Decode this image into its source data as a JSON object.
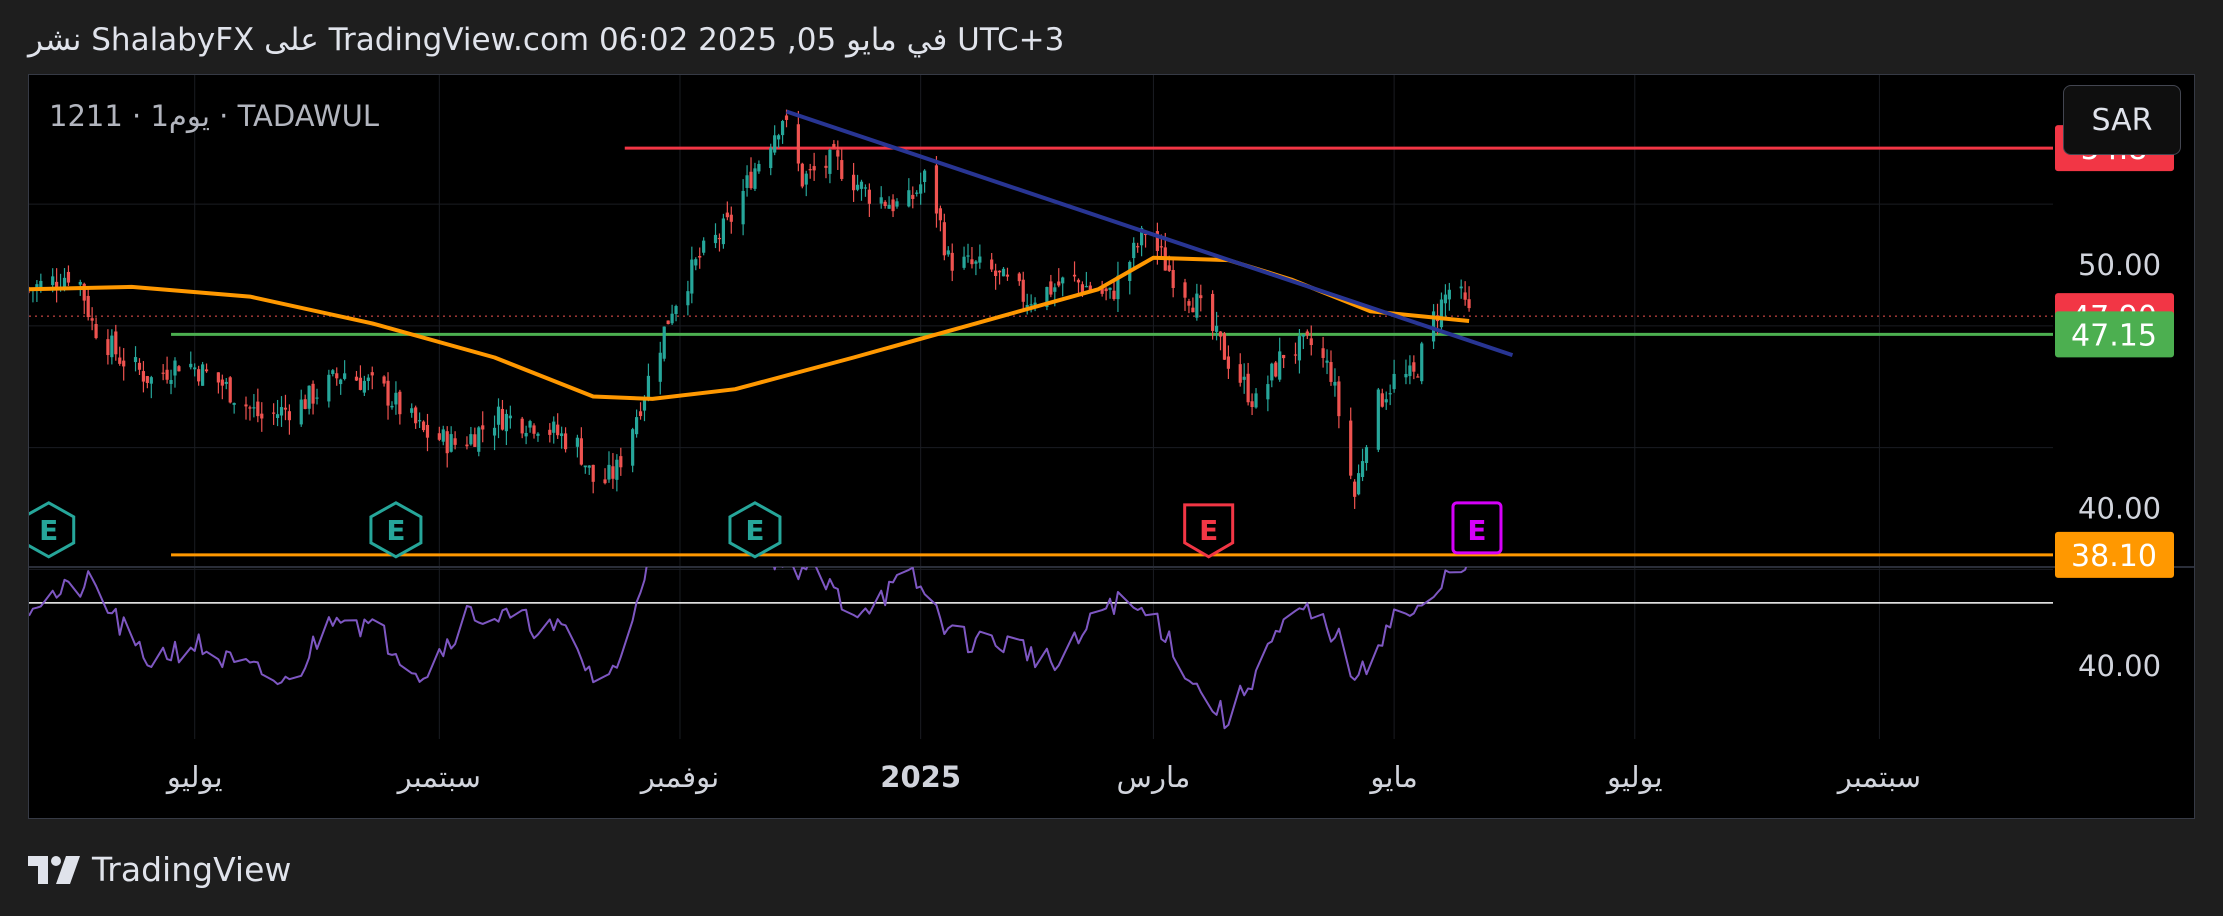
{
  "header": {
    "text": "نشر ShalabyFX على TradingView.com 06:02 2025 ,05 في مايو UTC+3"
  },
  "chart_header": {
    "symbol_info": "1211 · 1يوم · TADAWUL",
    "currency": "SAR"
  },
  "footer": {
    "brand": "TradingView"
  },
  "colors": {
    "up": "#26a69a",
    "down": "#ef5350",
    "ma": "#ff9800",
    "trendline": "#283593",
    "resistance": "#f23645",
    "support_green": "#4caf50",
    "support_orange": "#ff9800",
    "rsi": "#7e57c2",
    "earnings_green": "#26a69a",
    "earnings_red": "#f23645",
    "earnings_purple": "#d500f9"
  },
  "chart_data": {
    "type": "candlestick",
    "exchange": "TADAWUL",
    "symbol": "1211",
    "interval": "1يوم",
    "currency": "SAR",
    "price_axis": {
      "range": [
        37.6,
        57.8
      ],
      "tick_labels": [
        "50.00",
        "40.00"
      ]
    },
    "x_axis": {
      "range": [
        "2024-05-20",
        "2025-10-15"
      ],
      "ticks": [
        {
          "date": "2024-07-01",
          "label": "يوليو",
          "bold": false
        },
        {
          "date": "2024-09-01",
          "label": "سبتمبر",
          "bold": false
        },
        {
          "date": "2024-11-01",
          "label": "نوفمبر",
          "bold": false
        },
        {
          "date": "2025-01-01",
          "label": "2025",
          "bold": true
        },
        {
          "date": "2025-03-01",
          "label": "مارس",
          "bold": false
        },
        {
          "date": "2025-05-01",
          "label": "مايو",
          "bold": false
        },
        {
          "date": "2025-07-01",
          "label": "يوليو",
          "bold": false
        },
        {
          "date": "2025-09-01",
          "label": "سبتمبر",
          "bold": false
        }
      ]
    },
    "close_path": [
      [
        "2024-05-20",
        49.0
      ],
      [
        "2024-05-27",
        49.4
      ],
      [
        "2024-06-01",
        49.8
      ],
      [
        "2024-06-05",
        47.6
      ],
      [
        "2024-06-12",
        46.2
      ],
      [
        "2024-06-20",
        45.3
      ],
      [
        "2024-06-28",
        46.1
      ],
      [
        "2024-07-08",
        45.1
      ],
      [
        "2024-07-18",
        43.7
      ],
      [
        "2024-07-28",
        44.3
      ],
      [
        "2024-08-08",
        45.6
      ],
      [
        "2024-08-18",
        44.8
      ],
      [
        "2024-08-28",
        43.1
      ],
      [
        "2024-09-06",
        42.6
      ],
      [
        "2024-09-16",
        43.8
      ],
      [
        "2024-09-26",
        43.5
      ],
      [
        "2024-10-06",
        42.6
      ],
      [
        "2024-10-11",
        40.8
      ],
      [
        "2024-10-16",
        41.6
      ],
      [
        "2024-10-23",
        44.8
      ],
      [
        "2024-10-30",
        48.3
      ],
      [
        "2024-11-06",
        50.3
      ],
      [
        "2024-11-13",
        51.6
      ],
      [
        "2024-11-20",
        54.0
      ],
      [
        "2024-11-27",
        56.1
      ],
      [
        "2024-12-02",
        53.5
      ],
      [
        "2024-12-10",
        54.3
      ],
      [
        "2024-12-18",
        53.0
      ],
      [
        "2024-12-28",
        52.3
      ],
      [
        "2025-01-03",
        53.8
      ],
      [
        "2025-01-08",
        50.2
      ],
      [
        "2025-01-18",
        49.8
      ],
      [
        "2025-01-28",
        48.6
      ],
      [
        "2025-02-08",
        49.4
      ],
      [
        "2025-02-18",
        48.7
      ],
      [
        "2025-02-27",
        51.4
      ],
      [
        "2025-03-05",
        49.8
      ],
      [
        "2025-03-12",
        48.4
      ],
      [
        "2025-03-20",
        46.1
      ],
      [
        "2025-03-27",
        44.3
      ],
      [
        "2025-04-03",
        46.4
      ],
      [
        "2025-04-10",
        46.7
      ],
      [
        "2025-04-15",
        45.6
      ],
      [
        "2025-04-21",
        40.5
      ],
      [
        "2025-04-25",
        43.9
      ],
      [
        "2025-05-01",
        45.3
      ],
      [
        "2025-05-06",
        45.4
      ],
      [
        "2025-05-11",
        47.8
      ],
      [
        "2025-05-16",
        49.3
      ],
      [
        "2025-05-20",
        47.9
      ]
    ],
    "moving_average": [
      [
        "2024-05-20",
        49.0
      ],
      [
        "2024-06-15",
        49.1
      ],
      [
        "2024-07-15",
        48.7
      ],
      [
        "2024-08-15",
        47.6
      ],
      [
        "2024-09-15",
        46.2
      ],
      [
        "2024-10-10",
        44.6
      ],
      [
        "2024-10-25",
        44.5
      ],
      [
        "2024-11-15",
        44.9
      ],
      [
        "2024-12-15",
        46.2
      ],
      [
        "2025-01-15",
        47.6
      ],
      [
        "2025-02-15",
        49.0
      ],
      [
        "2025-03-01",
        50.3
      ],
      [
        "2025-03-20",
        50.2
      ],
      [
        "2025-04-05",
        49.4
      ],
      [
        "2025-04-25",
        48.1
      ],
      [
        "2025-05-20",
        47.7
      ]
    ],
    "trendline": {
      "from": [
        "2024-11-28",
        56.3
      ],
      "to": [
        "2025-05-31",
        46.3
      ]
    },
    "horizontal_levels": [
      {
        "name": "resistance",
        "price": 54.8,
        "label": "54.8",
        "from": "2024-10-18",
        "color": "#f23645"
      },
      {
        "name": "support",
        "price": 47.15,
        "label": "47.15",
        "from": "2024-06-25",
        "color": "#4caf50"
      },
      {
        "name": "support",
        "price": 38.1,
        "label": "38.10",
        "from": "2024-06-25",
        "color": "#ff9800"
      }
    ],
    "last_price": {
      "price": 47.9,
      "label": "47.90"
    },
    "earnings_markers": [
      {
        "date": "2024-05-25",
        "label": "E",
        "color": "#26a69a"
      },
      {
        "date": "2024-08-21",
        "label": "E",
        "color": "#26a69a"
      },
      {
        "date": "2024-11-20",
        "label": "E",
        "color": "#26a69a"
      },
      {
        "date": "2025-03-15",
        "label": "E",
        "color": "#f23645"
      },
      {
        "date": "2025-05-22",
        "label": "E",
        "color": "#d500f9"
      }
    ],
    "rsi": {
      "range": [
        26.8,
        58.0
      ],
      "tick_labels": [
        "40.00"
      ],
      "reference_line": 51.5,
      "path": [
        [
          "2024-05-20",
          51.4
        ],
        [
          "2024-06-05",
          55.0
        ],
        [
          "2024-06-18",
          41.0
        ],
        [
          "2024-07-01",
          44.0
        ],
        [
          "2024-07-10",
          40.5
        ],
        [
          "2024-07-25",
          36.5
        ],
        [
          "2024-08-06",
          50.5
        ],
        [
          "2024-08-18",
          45.3
        ],
        [
          "2024-08-28",
          38.5
        ],
        [
          "2024-09-08",
          49.5
        ],
        [
          "2024-09-20",
          48.5
        ],
        [
          "2024-10-03",
          46.0
        ],
        [
          "2024-10-10",
          38.0
        ],
        [
          "2024-10-16",
          39.0
        ],
        [
          "2024-10-23",
          58.0
        ],
        [
          "2024-11-05",
          62.0
        ],
        [
          "2024-11-25",
          60.0
        ],
        [
          "2024-12-05",
          57.0
        ],
        [
          "2024-12-15",
          50.0
        ],
        [
          "2024-12-30",
          56.0
        ],
        [
          "2025-01-10",
          45.0
        ],
        [
          "2025-01-25",
          44.0
        ],
        [
          "2025-02-05",
          40.0
        ],
        [
          "2025-02-18",
          52.0
        ],
        [
          "2025-03-02",
          48.5
        ],
        [
          "2025-03-12",
          36.0
        ],
        [
          "2025-03-20",
          30.0
        ],
        [
          "2025-03-30",
          43.5
        ],
        [
          "2025-04-08",
          50.0
        ],
        [
          "2025-04-16",
          46.0
        ],
        [
          "2025-04-22",
          37.0
        ],
        [
          "2025-04-30",
          49.0
        ],
        [
          "2025-05-10",
          50.0
        ],
        [
          "2025-05-17",
          60.0
        ],
        [
          "2025-05-21",
          57.5
        ]
      ]
    }
  }
}
